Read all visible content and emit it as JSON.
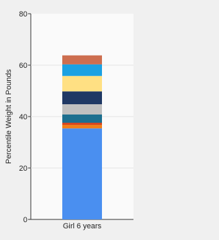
{
  "chart_data": {
    "type": "stacked_bar",
    "y_label": "Percentile Weight in Pounds",
    "categories": [
      "Girl 6 years"
    ],
    "series": [
      {
        "color": "#4a8ff0",
        "values": [
          35.4
        ]
      },
      {
        "color": "#f07f1a",
        "values": [
          1.4
        ]
      },
      {
        "color": "#d6461f",
        "values": [
          0.8
        ]
      },
      {
        "color": "#1d6f8f",
        "values": [
          3.2
        ]
      },
      {
        "color": "#c0c0c0",
        "values": [
          4
        ]
      },
      {
        "color": "#1f3864",
        "values": [
          5
        ]
      },
      {
        "color": "#ffe083",
        "values": [
          6
        ]
      },
      {
        "color": "#1ba1e2",
        "values": [
          4.5
        ]
      },
      {
        "color": "#cd6e4f",
        "values": [
          3.5
        ]
      }
    ],
    "ylim": [
      0,
      80
    ],
    "yticks": [
      0,
      20,
      40,
      60,
      80
    ],
    "grid": true
  }
}
